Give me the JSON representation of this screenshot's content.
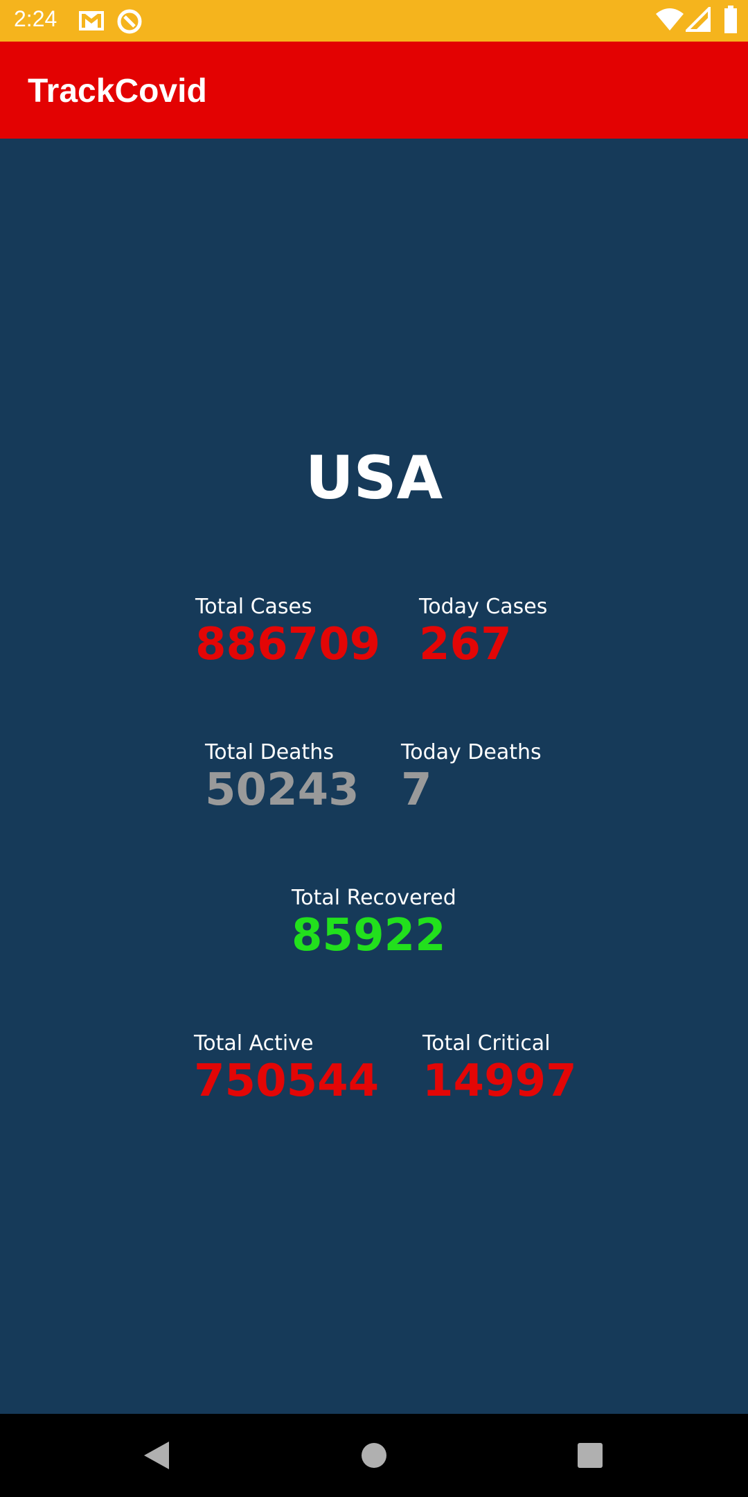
{
  "status_bar": {
    "time": "2:24",
    "icons": [
      "gmail-icon",
      "sync-icon",
      "wifi-icon",
      "signal-icon",
      "battery-icon"
    ]
  },
  "app_bar": {
    "title": "TrackCovid"
  },
  "country": "USA",
  "stats": {
    "total_cases": {
      "label": "Total Cases",
      "value": "886709"
    },
    "today_cases": {
      "label": "Today Cases",
      "value": "267"
    },
    "total_deaths": {
      "label": "Total Deaths",
      "value": "50243"
    },
    "today_deaths": {
      "label": "Today Deaths",
      "value": "7"
    },
    "total_recovered": {
      "label": "Total Recovered",
      "value": "85922"
    },
    "total_active": {
      "label": "Total Active",
      "value": "750544"
    },
    "total_critical": {
      "label": "Total Critical",
      "value": "14997"
    }
  },
  "colors": {
    "status_bar": "#F5B41D",
    "app_bar": "#E30202",
    "background": "#163A59",
    "red_value": "#E30606",
    "gray_value": "#9A9A9A",
    "green_value": "#22E01D"
  },
  "nav_bar": {
    "buttons": [
      "back-icon",
      "home-icon",
      "recents-icon"
    ]
  }
}
